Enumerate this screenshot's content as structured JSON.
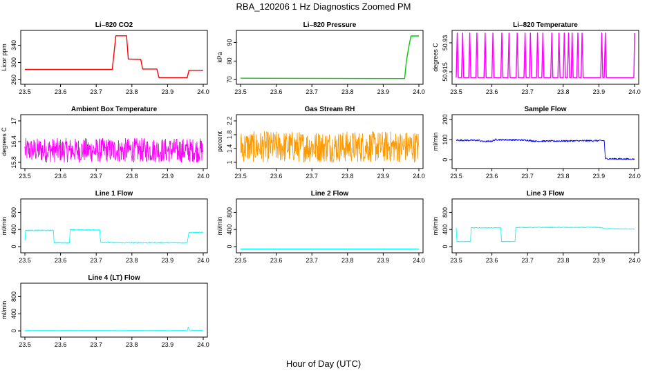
{
  "figure": {
    "title": "RBA_120206  1 Hz Diagnostics Zoomed PM",
    "xlabel": "Hour of Day (UTC)"
  },
  "chart_data": [
    {
      "type": "line",
      "title": "Li–820 CO2",
      "ylabel": "Licor ppm",
      "color": "#ff0000",
      "xlim": [
        23.5,
        24.0
      ],
      "ylim": [
        256,
        368
      ],
      "x_ticks": [
        "23.5",
        "23.6",
        "23.7",
        "23.8",
        "23.9",
        "24.0"
      ],
      "y_ticks": [
        260,
        300,
        340
      ],
      "noise": 0,
      "points": [
        [
          23.5,
          284
        ],
        [
          23.745,
          284
        ],
        [
          23.755,
          362
        ],
        [
          23.785,
          362
        ],
        [
          23.79,
          308
        ],
        [
          23.825,
          307
        ],
        [
          23.83,
          285
        ],
        [
          23.87,
          285
        ],
        [
          23.876,
          265
        ],
        [
          23.955,
          265
        ],
        [
          23.96,
          282
        ],
        [
          24.0,
          282
        ]
      ]
    },
    {
      "type": "line",
      "title": "Li–820 Pressure",
      "ylabel": "kPa",
      "color": "#00cc00",
      "xlim": [
        23.5,
        24.0
      ],
      "ylim": [
        69,
        95
      ],
      "x_ticks": [
        "23.5",
        "23.6",
        "23.7",
        "23.8",
        "23.9",
        "24.0"
      ],
      "y_ticks": [
        70,
        80,
        90
      ],
      "noise": 0,
      "points": [
        [
          23.5,
          70.8
        ],
        [
          23.96,
          70.6
        ],
        [
          23.965,
          80
        ],
        [
          23.972,
          88
        ],
        [
          23.978,
          93.5
        ],
        [
          24.0,
          93.5
        ]
      ]
    },
    {
      "type": "line",
      "title": "Li–820 Temperature",
      "ylabel": "degrees C",
      "color": "#ff00ff",
      "xlim": [
        23.5,
        24.0
      ],
      "ylim": [
        50.91,
        50.935
      ],
      "x_ticks": [
        "23.5",
        "23.6",
        "23.7",
        "23.8",
        "23.9",
        "24.0"
      ],
      "y_ticks": [
        50.915,
        50.93
      ],
      "noise": 0,
      "points": [
        [
          23.5,
          50.912
        ],
        [
          23.503,
          50.935
        ],
        [
          23.506,
          50.912
        ],
        [
          23.515,
          50.912
        ],
        [
          23.518,
          50.935
        ],
        [
          23.521,
          50.912
        ],
        [
          23.535,
          50.912
        ],
        [
          23.538,
          50.935
        ],
        [
          23.541,
          50.912
        ],
        [
          23.555,
          50.912
        ],
        [
          23.558,
          50.935
        ],
        [
          23.561,
          50.912
        ],
        [
          23.578,
          50.912
        ],
        [
          23.581,
          50.935
        ],
        [
          23.584,
          50.912
        ],
        [
          23.6,
          50.912
        ],
        [
          23.603,
          50.935
        ],
        [
          23.606,
          50.912
        ],
        [
          23.625,
          50.912
        ],
        [
          23.628,
          50.935
        ],
        [
          23.631,
          50.912
        ],
        [
          23.645,
          50.912
        ],
        [
          23.648,
          50.935
        ],
        [
          23.651,
          50.912
        ],
        [
          23.668,
          50.912
        ],
        [
          23.671,
          50.935
        ],
        [
          23.674,
          50.912
        ],
        [
          23.69,
          50.912
        ],
        [
          23.693,
          50.935
        ],
        [
          23.696,
          50.912
        ],
        [
          23.705,
          50.912
        ],
        [
          23.708,
          50.935
        ],
        [
          23.711,
          50.912
        ],
        [
          23.725,
          50.912
        ],
        [
          23.728,
          50.935
        ],
        [
          23.731,
          50.912
        ],
        [
          23.74,
          50.912
        ],
        [
          23.743,
          50.935
        ],
        [
          23.746,
          50.912
        ],
        [
          23.765,
          50.912
        ],
        [
          23.768,
          50.935
        ],
        [
          23.771,
          50.912
        ],
        [
          23.785,
          50.912
        ],
        [
          23.788,
          50.935
        ],
        [
          23.791,
          50.912
        ],
        [
          23.8,
          50.912
        ],
        [
          23.803,
          50.935
        ],
        [
          23.806,
          50.912
        ],
        [
          23.812,
          50.912
        ],
        [
          23.815,
          50.935
        ],
        [
          23.818,
          50.912
        ],
        [
          23.822,
          50.912
        ],
        [
          23.825,
          50.935
        ],
        [
          23.828,
          50.912
        ],
        [
          23.838,
          50.912
        ],
        [
          23.841,
          50.935
        ],
        [
          23.844,
          50.912
        ],
        [
          23.85,
          50.912
        ],
        [
          23.853,
          50.935
        ],
        [
          23.856,
          50.912
        ],
        [
          23.905,
          50.912
        ],
        [
          23.908,
          50.935
        ],
        [
          23.911,
          50.912
        ],
        [
          23.915,
          50.912
        ],
        [
          23.918,
          50.935
        ],
        [
          23.921,
          50.912
        ],
        [
          23.998,
          50.912
        ],
        [
          24.0,
          50.935
        ]
      ]
    },
    {
      "type": "line",
      "title": "Ambient Box Temperature",
      "ylabel": "degrees C",
      "color": "#ff00ff",
      "xlim": [
        23.5,
        24.0
      ],
      "ylim": [
        15.7,
        17.1
      ],
      "x_ticks": [
        "23.5",
        "23.6",
        "23.7",
        "23.8",
        "23.9",
        "24.0"
      ],
      "y_ticks": [
        15.8,
        16.4,
        17.0
      ],
      "noise": 0.35,
      "points": [
        [
          23.5,
          16.15
        ],
        [
          24.0,
          16.15
        ]
      ]
    },
    {
      "type": "line",
      "title": "Gas Stream RH",
      "ylabel": "percent",
      "color": "#ff9900",
      "xlim": [
        23.5,
        24.0
      ],
      "ylim": [
        0.9,
        2.3
      ],
      "x_ticks": [
        "23.5",
        "23.6",
        "23.7",
        "23.8",
        "23.9",
        "24.0"
      ],
      "y_ticks": [
        1.0,
        1.4,
        1.8,
        2.2
      ],
      "noise": 0.45,
      "points": [
        [
          23.5,
          1.45
        ],
        [
          24.0,
          1.45
        ]
      ]
    },
    {
      "type": "line",
      "title": "Sample Flow",
      "ylabel": "ml/min",
      "color": "#0000ff",
      "xlim": [
        23.5,
        24.0
      ],
      "ylim": [
        -30,
        210
      ],
      "x_ticks": [
        "23.5",
        "23.6",
        "23.7",
        "23.8",
        "23.9",
        "24.0"
      ],
      "y_ticks": [
        0,
        100,
        200
      ],
      "noise": 4,
      "points": [
        [
          23.5,
          97
        ],
        [
          23.565,
          96
        ],
        [
          23.575,
          90
        ],
        [
          23.6,
          92
        ],
        [
          23.61,
          100
        ],
        [
          23.7,
          97
        ],
        [
          23.72,
          92
        ],
        [
          23.915,
          95
        ],
        [
          23.918,
          5
        ],
        [
          24.0,
          3
        ]
      ]
    },
    {
      "type": "line",
      "title": "Line 1 Flow",
      "ylabel": "ml/min",
      "color": "#00ffff",
      "xlim": [
        23.5,
        24.0
      ],
      "ylim": [
        -80,
        1050
      ],
      "x_ticks": [
        "23.5",
        "23.6",
        "23.7",
        "23.8",
        "23.9",
        "24.0"
      ],
      "y_ticks": [
        0,
        400,
        800
      ],
      "noise": 12,
      "points": [
        [
          23.5,
          150
        ],
        [
          23.502,
          380
        ],
        [
          23.58,
          380
        ],
        [
          23.582,
          90
        ],
        [
          23.625,
          90
        ],
        [
          23.627,
          390
        ],
        [
          23.71,
          390
        ],
        [
          23.712,
          100
        ],
        [
          23.755,
          90
        ],
        [
          23.955,
          90
        ],
        [
          23.96,
          330
        ],
        [
          24.0,
          330
        ]
      ]
    },
    {
      "type": "line",
      "title": "Line 2 Flow",
      "ylabel": "ml/min",
      "color": "#00ffff",
      "xlim": [
        23.5,
        24.0
      ],
      "ylim": [
        -80,
        1050
      ],
      "x_ticks": [
        "23.5",
        "23.6",
        "23.7",
        "23.8",
        "23.9",
        "24.0"
      ],
      "y_ticks": [
        0,
        400,
        800
      ],
      "noise": 0,
      "points": [
        [
          23.5,
          -55
        ],
        [
          24.0,
          -55
        ]
      ]
    },
    {
      "type": "line",
      "title": "Line 3 Flow",
      "ylabel": "ml/min",
      "color": "#00ffff",
      "xlim": [
        23.5,
        24.0
      ],
      "ylim": [
        -80,
        1050
      ],
      "x_ticks": [
        "23.5",
        "23.6",
        "23.7",
        "23.8",
        "23.9",
        "24.0"
      ],
      "y_ticks": [
        0,
        400,
        800
      ],
      "noise": 8,
      "points": [
        [
          23.5,
          440
        ],
        [
          23.502,
          120
        ],
        [
          23.54,
          120
        ],
        [
          23.542,
          440
        ],
        [
          23.625,
          440
        ],
        [
          23.627,
          120
        ],
        [
          23.665,
          120
        ],
        [
          23.667,
          450
        ],
        [
          23.9,
          450
        ],
        [
          23.92,
          420
        ],
        [
          24.0,
          410
        ]
      ]
    },
    {
      "type": "line",
      "title": "Line 4 (LT) Flow",
      "ylabel": "ml/min",
      "color": "#00ffff",
      "xlim": [
        23.5,
        24.0
      ],
      "ylim": [
        -80,
        1050
      ],
      "x_ticks": [
        "23.5",
        "23.6",
        "23.7",
        "23.8",
        "23.9",
        "24.0"
      ],
      "y_ticks": [
        0,
        400,
        800
      ],
      "noise": 3,
      "points": [
        [
          23.5,
          5
        ],
        [
          23.955,
          5
        ],
        [
          23.958,
          90
        ],
        [
          23.961,
          15
        ],
        [
          24.0,
          10
        ]
      ]
    }
  ]
}
